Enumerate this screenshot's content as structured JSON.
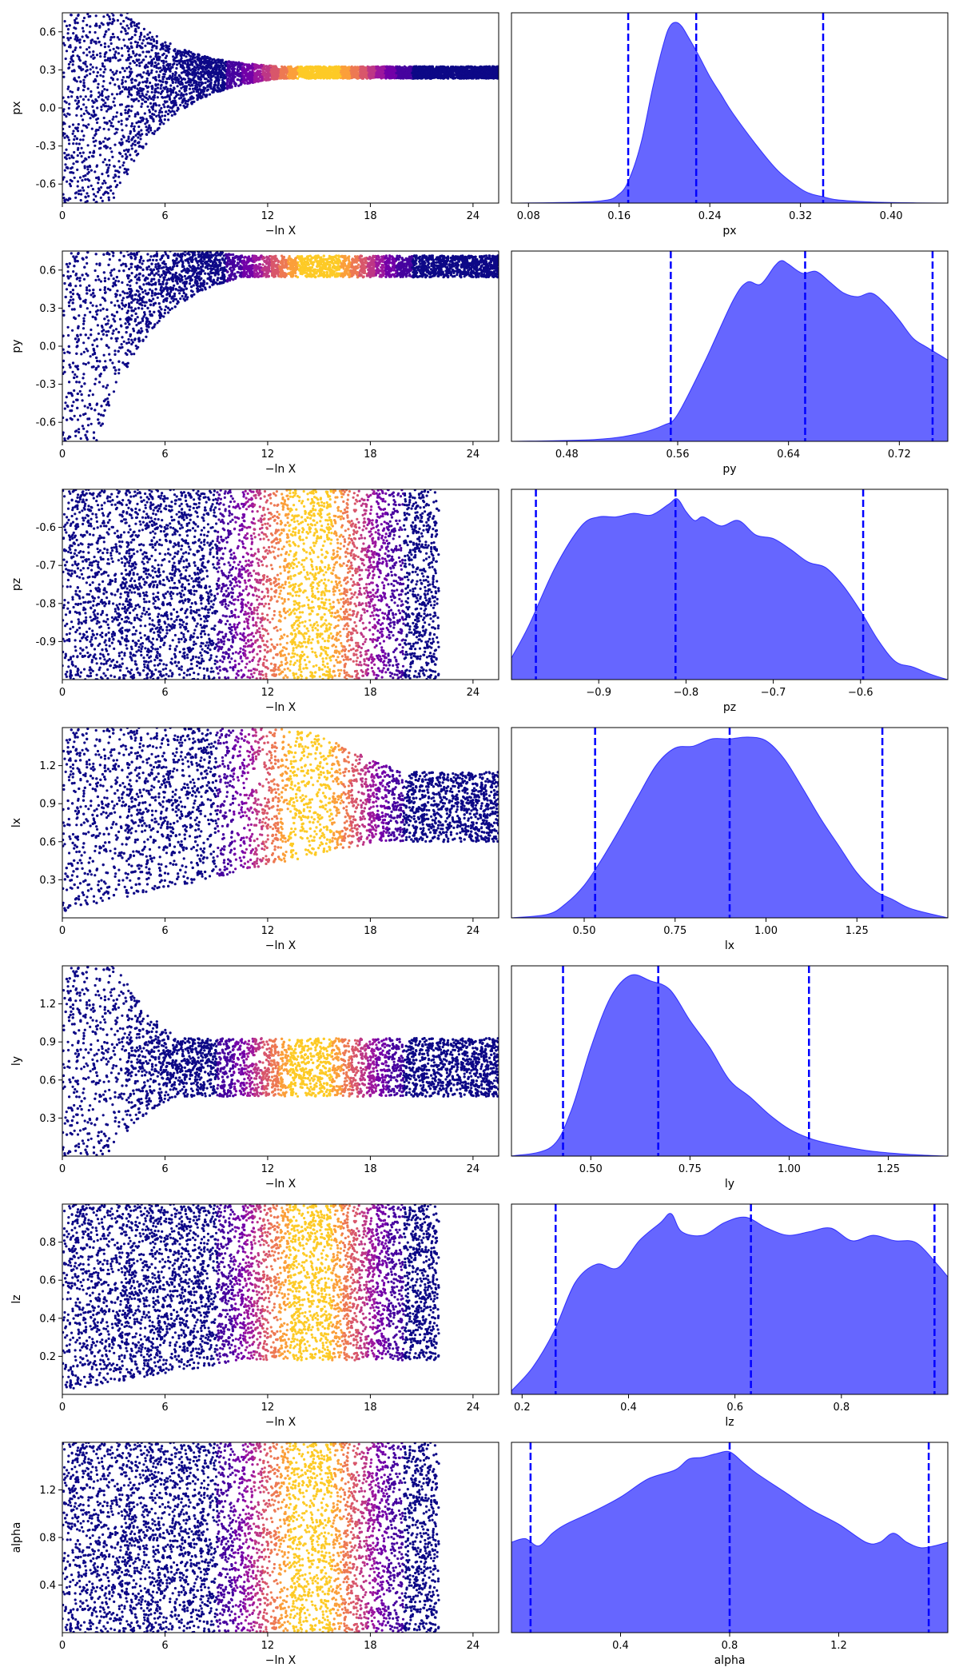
{
  "colors": {
    "kde_fill": "#0000ff",
    "kde_fill_opacity": 0.6,
    "quantile_line": "#0000ff",
    "scatter_low": "#0d0887",
    "scatter_high": "#f0f921",
    "colormap": "plasma"
  },
  "chart_data": [
    {
      "type": "scatter",
      "parameter": "px",
      "xlabel": "−ln X",
      "ylabel": "px",
      "xlim": [
        0,
        25.5
      ],
      "ylim": [
        -0.75,
        0.75
      ],
      "xticks": [
        "0",
        "6",
        "12",
        "18",
        "24"
      ],
      "yticks": [
        "-0.6",
        "-0.3",
        "0.0",
        "0.3",
        "0.6"
      ],
      "shape": "funnel",
      "converge_to": 0.28,
      "tail_width": 0.03,
      "max_x": 25.5,
      "color_peak": 15
    },
    {
      "type": "area",
      "parameter": "px",
      "xlabel": "px",
      "xlim": [
        0.065,
        0.45
      ],
      "xticks": [
        "0.08",
        "0.16",
        "0.24",
        "0.32",
        "0.40"
      ],
      "quantiles": [
        0.168,
        0.228,
        0.34
      ],
      "x": [
        0.065,
        0.14,
        0.16,
        0.17,
        0.18,
        0.19,
        0.2,
        0.205,
        0.21,
        0.215,
        0.22,
        0.23,
        0.24,
        0.25,
        0.26,
        0.28,
        0.3,
        0.32,
        0.33,
        0.34,
        0.35,
        0.37,
        0.4,
        0.45
      ],
      "y": [
        0.0,
        0.01,
        0.05,
        0.15,
        0.35,
        0.65,
        0.9,
        0.98,
        1.0,
        0.98,
        0.93,
        0.82,
        0.7,
        0.6,
        0.5,
        0.33,
        0.18,
        0.08,
        0.05,
        0.035,
        0.02,
        0.01,
        0.003,
        0.0
      ]
    },
    {
      "type": "scatter",
      "parameter": "py",
      "xlabel": "−ln X",
      "ylabel": "py",
      "xlim": [
        0,
        25.5
      ],
      "ylim": [
        -0.75,
        0.75
      ],
      "xticks": [
        "0",
        "6",
        "12",
        "18",
        "24"
      ],
      "yticks": [
        "-0.6",
        "-0.3",
        "0.0",
        "0.3",
        "0.6"
      ],
      "shape": "funnel",
      "converge_to": 0.64,
      "tail_width": 0.06,
      "max_x": 25.5,
      "color_peak": 15
    },
    {
      "type": "area",
      "parameter": "py",
      "xlabel": "py",
      "xlim": [
        0.44,
        0.755
      ],
      "xticks": [
        "0.48",
        "0.56",
        "0.64",
        "0.72"
      ],
      "quantiles": [
        0.555,
        0.652,
        0.744
      ],
      "x": [
        0.44,
        0.5,
        0.53,
        0.55,
        0.56,
        0.58,
        0.6,
        0.61,
        0.62,
        0.63,
        0.635,
        0.64,
        0.65,
        0.66,
        0.67,
        0.68,
        0.69,
        0.7,
        0.71,
        0.72,
        0.73,
        0.74,
        0.755
      ],
      "y": [
        0.0,
        0.01,
        0.04,
        0.09,
        0.15,
        0.45,
        0.78,
        0.88,
        0.87,
        0.97,
        1.0,
        0.98,
        0.93,
        0.94,
        0.88,
        0.82,
        0.8,
        0.82,
        0.76,
        0.67,
        0.57,
        0.52,
        0.45
      ]
    },
    {
      "type": "scatter",
      "parameter": "pz",
      "xlabel": "−ln X",
      "ylabel": "pz",
      "xlim": [
        0,
        25.5
      ],
      "ylim": [
        -1.0,
        -0.5
      ],
      "xticks": [
        "0",
        "6",
        "12",
        "18",
        "24"
      ],
      "yticks": [
        "-0.9",
        "-0.8",
        "-0.7",
        "-0.6"
      ],
      "shape": "uniform",
      "max_x": 22,
      "color_peak": 14.5
    },
    {
      "type": "area",
      "parameter": "pz",
      "xlabel": "pz",
      "xlim": [
        -1.0,
        -0.5
      ],
      "xticks": [
        "−0.9",
        "−0.8",
        "−0.7",
        "−0.6"
      ],
      "quantiles": [
        -0.972,
        -0.812,
        -0.597
      ],
      "x": [
        -1.0,
        -0.98,
        -0.95,
        -0.92,
        -0.9,
        -0.88,
        -0.86,
        -0.84,
        -0.82,
        -0.81,
        -0.8,
        -0.79,
        -0.78,
        -0.76,
        -0.74,
        -0.72,
        -0.7,
        -0.68,
        -0.66,
        -0.64,
        -0.62,
        -0.6,
        -0.58,
        -0.56,
        -0.54,
        -0.52,
        -0.5
      ],
      "y": [
        0.12,
        0.3,
        0.62,
        0.85,
        0.9,
        0.9,
        0.92,
        0.91,
        0.97,
        1.0,
        0.93,
        0.88,
        0.9,
        0.85,
        0.88,
        0.8,
        0.78,
        0.72,
        0.65,
        0.62,
        0.52,
        0.38,
        0.22,
        0.1,
        0.07,
        0.03,
        0.0
      ]
    },
    {
      "type": "scatter",
      "parameter": "lx",
      "xlabel": "−ln X",
      "ylabel": "lx",
      "xlim": [
        0,
        25.5
      ],
      "ylim": [
        0.0,
        1.5
      ],
      "xticks": [
        "0",
        "6",
        "12",
        "18",
        "24"
      ],
      "yticks": [
        "0.3",
        "0.6",
        "0.9",
        "1.2"
      ],
      "shape": "widening",
      "center": 0.95,
      "max_x": 25.5,
      "color_peak": 14.5
    },
    {
      "type": "area",
      "parameter": "lx",
      "xlabel": "lx",
      "xlim": [
        0.3,
        1.5
      ],
      "xticks": [
        "0.50",
        "0.75",
        "1.00",
        "1.25"
      ],
      "quantiles": [
        0.53,
        0.9,
        1.32
      ],
      "x": [
        0.3,
        0.4,
        0.45,
        0.5,
        0.55,
        0.6,
        0.65,
        0.7,
        0.75,
        0.8,
        0.85,
        0.9,
        0.95,
        1.0,
        1.05,
        1.1,
        1.15,
        1.2,
        1.25,
        1.3,
        1.35,
        1.4,
        1.5
      ],
      "y": [
        0.0,
        0.02,
        0.08,
        0.18,
        0.33,
        0.5,
        0.68,
        0.85,
        0.94,
        0.95,
        0.99,
        0.99,
        1.0,
        0.98,
        0.88,
        0.72,
        0.55,
        0.4,
        0.25,
        0.15,
        0.1,
        0.05,
        0.0
      ]
    },
    {
      "type": "scatter",
      "parameter": "ly",
      "xlabel": "−ln X",
      "ylabel": "ly",
      "xlim": [
        0,
        25.5
      ],
      "ylim": [
        0.0,
        1.5
      ],
      "xticks": [
        "0",
        "6",
        "12",
        "18",
        "24"
      ],
      "yticks": [
        "0.3",
        "0.6",
        "0.9",
        "1.2"
      ],
      "shape": "funnel_top",
      "converge_to": 0.65,
      "tail_width": 0.2,
      "max_x": 25.5,
      "color_peak": 14.5
    },
    {
      "type": "area",
      "parameter": "ly",
      "xlabel": "ly",
      "xlim": [
        0.3,
        1.4
      ],
      "xticks": [
        "0.50",
        "0.75",
        "1.00",
        "1.25"
      ],
      "quantiles": [
        0.43,
        0.67,
        1.05
      ],
      "x": [
        0.3,
        0.4,
        0.45,
        0.5,
        0.55,
        0.6,
        0.65,
        0.7,
        0.75,
        0.8,
        0.85,
        0.9,
        0.95,
        1.0,
        1.05,
        1.1,
        1.2,
        1.3,
        1.4
      ],
      "y": [
        0.0,
        0.05,
        0.25,
        0.6,
        0.88,
        1.0,
        0.97,
        0.92,
        0.75,
        0.6,
        0.42,
        0.33,
        0.23,
        0.15,
        0.1,
        0.07,
        0.03,
        0.01,
        0.0
      ]
    },
    {
      "type": "scatter",
      "parameter": "lz",
      "xlabel": "−ln X",
      "ylabel": "lz",
      "xlim": [
        0,
        25.5
      ],
      "ylim": [
        0.0,
        1.0
      ],
      "xticks": [
        "0",
        "6",
        "12",
        "18",
        "24"
      ],
      "yticks": [
        "0.2",
        "0.4",
        "0.6",
        "0.8"
      ],
      "shape": "bottom_limited",
      "max_x": 22,
      "color_peak": 14.5
    },
    {
      "type": "area",
      "parameter": "lz",
      "xlabel": "lz",
      "xlim": [
        0.18,
        1.0
      ],
      "xticks": [
        "0.2",
        "0.4",
        "0.6",
        "0.8"
      ],
      "quantiles": [
        0.263,
        0.63,
        0.975
      ],
      "x": [
        0.18,
        0.22,
        0.26,
        0.3,
        0.34,
        0.38,
        0.42,
        0.46,
        0.48,
        0.5,
        0.54,
        0.58,
        0.62,
        0.66,
        0.7,
        0.74,
        0.78,
        0.82,
        0.86,
        0.9,
        0.94,
        0.98,
        1.0
      ],
      "y": [
        0.02,
        0.15,
        0.35,
        0.62,
        0.72,
        0.7,
        0.85,
        0.95,
        1.0,
        0.9,
        0.88,
        0.95,
        0.98,
        0.92,
        0.88,
        0.9,
        0.92,
        0.85,
        0.88,
        0.85,
        0.84,
        0.72,
        0.65
      ]
    },
    {
      "type": "scatter",
      "parameter": "alpha",
      "xlabel": "−ln X",
      "ylabel": "alpha",
      "xlim": [
        0,
        25.5
      ],
      "ylim": [
        0.0,
        1.6
      ],
      "xticks": [
        "0",
        "6",
        "12",
        "18",
        "24"
      ],
      "yticks": [
        "0.4",
        "0.8",
        "1.2"
      ],
      "shape": "uniform",
      "max_x": 22,
      "color_peak": 14.5
    },
    {
      "type": "area",
      "parameter": "alpha",
      "xlabel": "alpha",
      "xlim": [
        0.0,
        1.6
      ],
      "xticks": [
        "0.4",
        "0.8",
        "1.2"
      ],
      "quantiles": [
        0.07,
        0.8,
        1.53
      ],
      "x": [
        0.0,
        0.05,
        0.1,
        0.15,
        0.2,
        0.3,
        0.4,
        0.5,
        0.6,
        0.65,
        0.7,
        0.75,
        0.8,
        0.85,
        0.9,
        1.0,
        1.1,
        1.2,
        1.3,
        1.35,
        1.4,
        1.45,
        1.5,
        1.55,
        1.6
      ],
      "y": [
        0.5,
        0.52,
        0.48,
        0.55,
        0.6,
        0.67,
        0.75,
        0.85,
        0.9,
        0.96,
        0.97,
        0.99,
        1.0,
        0.94,
        0.88,
        0.78,
        0.68,
        0.6,
        0.5,
        0.5,
        0.55,
        0.5,
        0.47,
        0.48,
        0.5
      ]
    }
  ]
}
